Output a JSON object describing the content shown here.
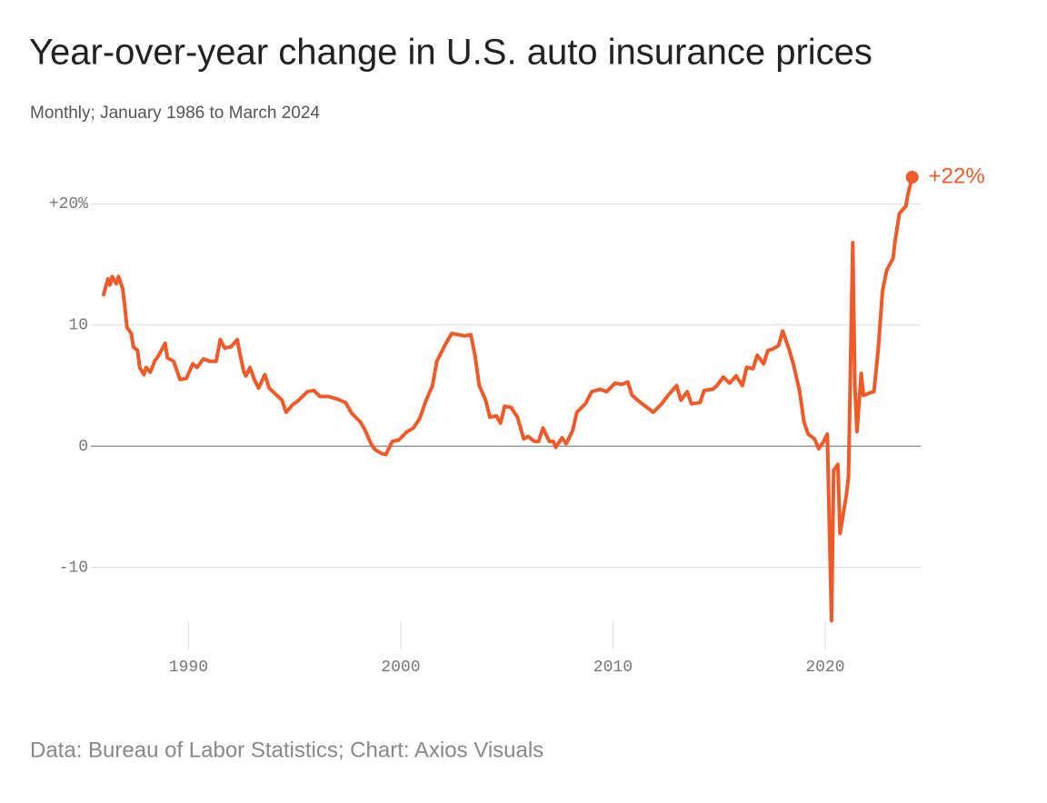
{
  "chart_data": {
    "type": "line",
    "title": "Year-over-year change in U.S. auto insurance prices",
    "subtitle": "Monthly; January 1986 to March 2024",
    "source": "Data: Bureau of Labor Statistics; Chart: Axios Visuals",
    "end_label": "+22%",
    "x": [
      1986.0,
      1986.2,
      1986.3,
      1986.4,
      1986.6,
      1986.7,
      1986.9,
      1987.0,
      1987.1,
      1987.3,
      1987.4,
      1987.6,
      1987.7,
      1987.9,
      1988.0,
      1988.2,
      1988.4,
      1988.6,
      1988.9,
      1989.0,
      1989.3,
      1989.6,
      1989.9,
      1990.2,
      1990.4,
      1990.7,
      1991.0,
      1991.3,
      1991.5,
      1991.7,
      1992.0,
      1992.3,
      1992.4,
      1992.6,
      1992.7,
      1992.9,
      1993.1,
      1993.3,
      1993.6,
      1993.8,
      1994.1,
      1994.4,
      1994.6,
      1994.9,
      1995.2,
      1995.6,
      1995.9,
      1996.2,
      1996.6,
      1997.0,
      1997.4,
      1997.7,
      1998.1,
      1998.3,
      1998.6,
      1998.8,
      1999.1,
      1999.3,
      1999.6,
      1999.9,
      2000.3,
      2000.6,
      2000.9,
      2001.2,
      2001.5,
      2001.7,
      2002.1,
      2002.4,
      2002.7,
      2003.0,
      2003.3,
      2003.5,
      2003.7,
      2004.0,
      2004.2,
      2004.5,
      2004.7,
      2004.9,
      2005.2,
      2005.5,
      2005.8,
      2006.0,
      2006.3,
      2006.5,
      2006.7,
      2007.0,
      2007.2,
      2007.3,
      2007.6,
      2007.8,
      2008.1,
      2008.3,
      2008.7,
      2009.0,
      2009.4,
      2009.7,
      2010.1,
      2010.4,
      2010.7,
      2010.9,
      2011.3,
      2011.6,
      2011.9,
      2012.3,
      2012.6,
      2013.0,
      2013.2,
      2013.5,
      2013.7,
      2014.1,
      2014.3,
      2014.7,
      2014.9,
      2015.2,
      2015.5,
      2015.8,
      2016.1,
      2016.3,
      2016.6,
      2016.8,
      2017.1,
      2017.3,
      2017.5,
      2017.8,
      2018.0,
      2018.3,
      2018.5,
      2018.8,
      2019.0,
      2019.2,
      2019.5,
      2019.7,
      2019.9,
      2020.1,
      2020.3,
      2020.4,
      2020.6,
      2020.7,
      2021.0,
      2021.1,
      2021.3,
      2021.4,
      2021.5,
      2021.7,
      2021.8,
      2022.1,
      2022.3,
      2022.5,
      2022.7,
      2022.9,
      2023.2,
      2023.3,
      2023.5,
      2023.8,
      2023.9,
      2024.1
    ],
    "series": [
      {
        "name": "Auto insurance prices",
        "color": "#f05a28",
        "values": [
          12.5,
          13.8,
          13.3,
          14.0,
          13.4,
          14.0,
          13.0,
          11.5,
          9.8,
          9.3,
          8.2,
          7.9,
          6.5,
          5.9,
          6.5,
          6.1,
          7.0,
          7.5,
          8.5,
          7.3,
          7.0,
          5.5,
          5.6,
          6.8,
          6.5,
          7.2,
          7.0,
          7.0,
          8.8,
          8.1,
          8.2,
          8.8,
          7.8,
          6.2,
          5.8,
          6.5,
          5.5,
          4.8,
          5.9,
          4.8,
          4.3,
          3.8,
          2.8,
          3.4,
          3.8,
          4.5,
          4.6,
          4.1,
          4.1,
          3.9,
          3.6,
          2.7,
          2.0,
          1.4,
          0.2,
          -0.3,
          -0.6,
          -0.7,
          0.4,
          0.5,
          1.2,
          1.5,
          2.3,
          3.8,
          5.0,
          7.0,
          8.4,
          9.3,
          9.2,
          9.1,
          9.2,
          7.5,
          5.0,
          3.8,
          2.4,
          2.5,
          1.9,
          3.3,
          3.2,
          2.4,
          0.6,
          0.8,
          0.4,
          0.4,
          1.5,
          0.4,
          0.4,
          -0.1,
          0.7,
          0.2,
          1.3,
          2.8,
          3.5,
          4.5,
          4.7,
          4.5,
          5.2,
          5.1,
          5.3,
          4.2,
          3.6,
          3.2,
          2.8,
          3.5,
          4.2,
          5.0,
          3.8,
          4.5,
          3.5,
          3.6,
          4.6,
          4.7,
          5.0,
          5.7,
          5.2,
          5.8,
          5.0,
          6.5,
          6.4,
          7.5,
          6.8,
          7.9,
          8.0,
          8.3,
          9.5,
          8.0,
          6.8,
          4.5,
          2.0,
          1.0,
          0.6,
          -0.2,
          0.3,
          1.0,
          -14.4,
          -2.0,
          -1.5,
          -7.2,
          -4.0,
          -2.5,
          16.8,
          5.0,
          1.2,
          6.0,
          4.2,
          4.4,
          4.5,
          8.0,
          12.8,
          14.5,
          15.5,
          17.0,
          19.2,
          19.8,
          20.8,
          22.2
        ]
      }
    ],
    "xlim": [
      1985.4,
      2024.5
    ],
    "xticks": [
      1990,
      2000,
      2010,
      2020
    ],
    "ylim": [
      -15.5,
      22.5
    ],
    "yticks": [
      {
        "value": 20,
        "label": "+20%"
      },
      10,
      0,
      -10
    ],
    "grid": true
  }
}
